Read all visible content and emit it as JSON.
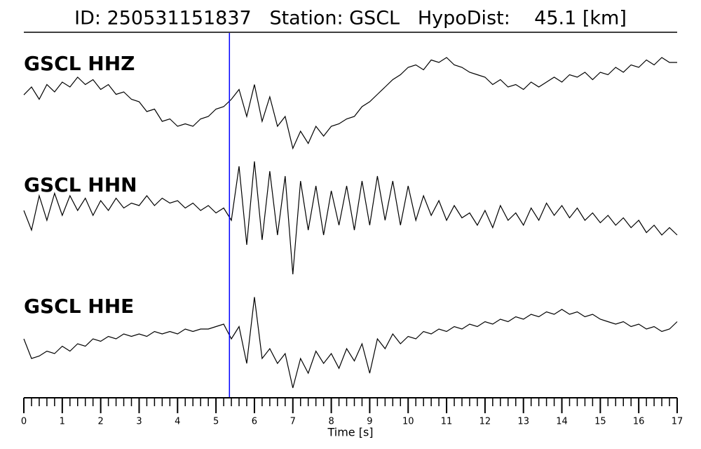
{
  "chart_data": {
    "type": "line",
    "title": "ID: 250531151837   Station: GSCL   HypoDist:    45.1 [km]",
    "xlabel": "Time [s]",
    "x": [
      0,
      0.2,
      0.4,
      0.6,
      0.8,
      1,
      1.2,
      1.4,
      1.6,
      1.8,
      2,
      2.2,
      2.4,
      2.6,
      2.8,
      3,
      3.2,
      3.4,
      3.6,
      3.8,
      4,
      4.2,
      4.4,
      4.6,
      4.8,
      5,
      5.2,
      5.4,
      5.6,
      5.8,
      6,
      6.2,
      6.4,
      6.6,
      6.8,
      7,
      7.2,
      7.4,
      7.6,
      7.8,
      8,
      8.2,
      8.4,
      8.6,
      8.8,
      9,
      9.2,
      9.4,
      9.6,
      9.8,
      10,
      10.2,
      10.4,
      10.6,
      10.8,
      11,
      11.2,
      11.4,
      11.6,
      11.8,
      12,
      12.2,
      12.4,
      12.6,
      12.8,
      13,
      13.2,
      13.4,
      13.6,
      13.8,
      14,
      14.2,
      14.4,
      14.6,
      14.8,
      15,
      15.2,
      15.4,
      15.6,
      15.8,
      16,
      16.2,
      16.4,
      16.6,
      16.8,
      17
    ],
    "series": [
      {
        "name": "GSCL HHZ",
        "color": "#000000",
        "values": [
          0.14,
          0.3,
          0.05,
          0.35,
          0.2,
          0.4,
          0.3,
          0.5,
          0.35,
          0.45,
          0.25,
          0.35,
          0.15,
          0.2,
          0.05,
          0,
          -0.2,
          -0.15,
          -0.4,
          -0.35,
          -0.5,
          -0.45,
          -0.5,
          -0.35,
          -0.3,
          -0.15,
          -0.1,
          0.05,
          0.25,
          -0.3,
          0.35,
          -0.4,
          0.1,
          -0.5,
          -0.3,
          -0.95,
          -0.6,
          -0.85,
          -0.5,
          -0.7,
          -0.5,
          -0.45,
          -0.35,
          -0.3,
          -0.1,
          0,
          0.15,
          0.3,
          0.45,
          0.55,
          0.7,
          0.75,
          0.65,
          0.85,
          0.8,
          0.9,
          0.75,
          0.7,
          0.6,
          0.55,
          0.5,
          0.35,
          0.45,
          0.3,
          0.35,
          0.25,
          0.4,
          0.3,
          0.4,
          0.5,
          0.4,
          0.55,
          0.5,
          0.6,
          0.45,
          0.6,
          0.55,
          0.7,
          0.6,
          0.75,
          0.7,
          0.85,
          0.75,
          0.9,
          0.8,
          0.8
        ]
      },
      {
        "name": "GSCL HHN",
        "color": "#000000",
        "values": [
          0,
          -0.4,
          0.3,
          -0.2,
          0.35,
          -0.1,
          0.3,
          0,
          0.25,
          -0.1,
          0.2,
          0,
          0.25,
          0.05,
          0.15,
          0.1,
          0.3,
          0.1,
          0.25,
          0.15,
          0.2,
          0.05,
          0.15,
          0,
          0.1,
          -0.05,
          0.05,
          -0.2,
          0.9,
          -0.7,
          1,
          -0.6,
          0.8,
          -0.5,
          0.7,
          -1.3,
          0.6,
          -0.4,
          0.5,
          -0.5,
          0.4,
          -0.3,
          0.5,
          -0.4,
          0.6,
          -0.3,
          0.7,
          -0.2,
          0.6,
          -0.3,
          0.5,
          -0.2,
          0.3,
          -0.1,
          0.2,
          -0.2,
          0.1,
          -0.15,
          -0.05,
          -0.3,
          0,
          -0.35,
          0.1,
          -0.2,
          -0.05,
          -0.3,
          0.05,
          -0.2,
          0.15,
          -0.1,
          0.1,
          -0.15,
          0.05,
          -0.2,
          -0.05,
          -0.25,
          -0.1,
          -0.3,
          -0.15,
          -0.35,
          -0.2,
          -0.45,
          -0.3,
          -0.5,
          -0.35,
          -0.5
        ]
      },
      {
        "name": "GSCL HHE",
        "color": "#000000",
        "values": [
          0.1,
          -0.3,
          -0.25,
          -0.15,
          -0.2,
          -0.05,
          -0.15,
          0,
          -0.05,
          0.1,
          0.05,
          0.15,
          0.1,
          0.2,
          0.15,
          0.2,
          0.15,
          0.25,
          0.2,
          0.25,
          0.2,
          0.3,
          0.25,
          0.3,
          0.3,
          0.35,
          0.4,
          0.1,
          0.35,
          -0.4,
          0.95,
          -0.3,
          -0.1,
          -0.4,
          -0.2,
          -0.9,
          -0.3,
          -0.6,
          -0.15,
          -0.4,
          -0.2,
          -0.5,
          -0.1,
          -0.35,
          0,
          -0.6,
          0.1,
          -0.1,
          0.2,
          0,
          0.15,
          0.1,
          0.25,
          0.2,
          0.3,
          0.25,
          0.35,
          0.3,
          0.4,
          0.35,
          0.45,
          0.4,
          0.5,
          0.45,
          0.55,
          0.5,
          0.6,
          0.55,
          0.65,
          0.6,
          0.7,
          0.6,
          0.65,
          0.55,
          0.6,
          0.5,
          0.45,
          0.4,
          0.45,
          0.35,
          0.4,
          0.3,
          0.35,
          0.25,
          0.3,
          0.45
        ]
      }
    ],
    "label_color": "#4a9a0a",
    "marker_x": 5.35,
    "marker_color": "#0000ff",
    "xlim": [
      0,
      17
    ],
    "xticks": [
      0,
      1,
      2,
      3,
      4,
      5,
      6,
      7,
      8,
      9,
      10,
      11,
      12,
      13,
      14,
      15,
      16,
      17
    ],
    "ylim": [
      -1.5,
      1.5
    ]
  }
}
